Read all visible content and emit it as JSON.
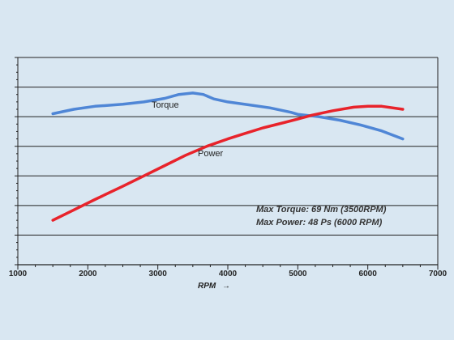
{
  "chart_data": {
    "type": "line",
    "title": "",
    "xlabel": "RPM",
    "xlabel_arrow": "→",
    "ylabel": "",
    "xlim": [
      1000,
      7000
    ],
    "x_ticks": [
      "1000",
      "2000",
      "3000",
      "4000",
      "5000",
      "6000",
      "7000"
    ],
    "grid": true,
    "series": [
      {
        "name": "Torque",
        "color": "#4f86d6",
        "x": [
          1500,
          1800,
          2100,
          2500,
          2800,
          3100,
          3300,
          3500,
          3650,
          3800,
          4000,
          4300,
          4600,
          4900,
          5000,
          5300,
          5600,
          5900,
          6200,
          6500
        ],
        "y": [
          5.1,
          5.25,
          5.35,
          5.42,
          5.5,
          5.62,
          5.75,
          5.8,
          5.75,
          5.6,
          5.5,
          5.4,
          5.3,
          5.15,
          5.08,
          5.0,
          4.88,
          4.72,
          4.52,
          4.25
        ]
      },
      {
        "name": "Power",
        "color": "#e8232b",
        "x": [
          1500,
          1800,
          2100,
          2500,
          2800,
          3100,
          3400,
          3700,
          4000,
          4200,
          4500,
          4800,
          5000,
          5200,
          5500,
          5800,
          6000,
          6200,
          6500
        ],
        "y": [
          1.5,
          1.85,
          2.2,
          2.65,
          3.0,
          3.35,
          3.7,
          4.0,
          4.25,
          4.4,
          4.62,
          4.8,
          4.92,
          5.05,
          5.2,
          5.32,
          5.35,
          5.35,
          5.25
        ]
      }
    ],
    "annotations": [
      "Max Torque: 69 Nm (3500RPM)",
      "Max Power: 48 Ps (6000 RPM)"
    ]
  }
}
